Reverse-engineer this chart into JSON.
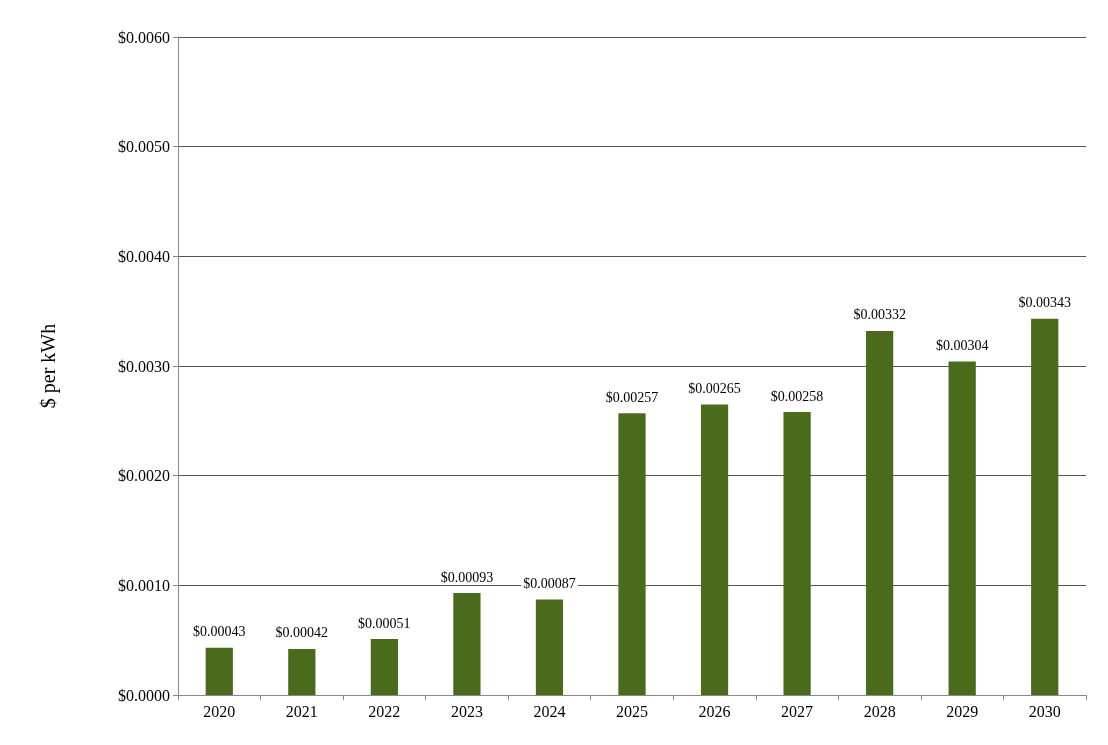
{
  "chart_data": {
    "type": "bar",
    "ylabel": "$ per kWh",
    "categories": [
      "2020",
      "2021",
      "2022",
      "2023",
      "2024",
      "2025",
      "2026",
      "2027",
      "2028",
      "2029",
      "2030"
    ],
    "values": [
      0.00043,
      0.00042,
      0.00051,
      0.00093,
      0.00087,
      0.00257,
      0.00265,
      0.00258,
      0.00332,
      0.00304,
      0.00343
    ],
    "value_labels": [
      "$0.00043",
      "$0.00042",
      "$0.00051",
      "$0.00093",
      "$0.00087",
      "$0.00257",
      "$0.00265",
      "$0.00258",
      "$0.00332",
      "$0.00304",
      "$0.00343"
    ],
    "color": "#4b6b1c",
    "ylim": [
      0,
      0.006
    ],
    "yticks": [
      {
        "value": 0,
        "label": "$0.0000"
      },
      {
        "value": 0.001,
        "label": "$0.0010"
      },
      {
        "value": 0.002,
        "label": "$0.0020"
      },
      {
        "value": 0.003,
        "label": "$0.0030"
      },
      {
        "value": 0.004,
        "label": "$0.0040"
      },
      {
        "value": 0.005,
        "label": "$0.0050"
      },
      {
        "value": 0.006,
        "label": "$0.0060"
      }
    ],
    "grid": "y"
  }
}
